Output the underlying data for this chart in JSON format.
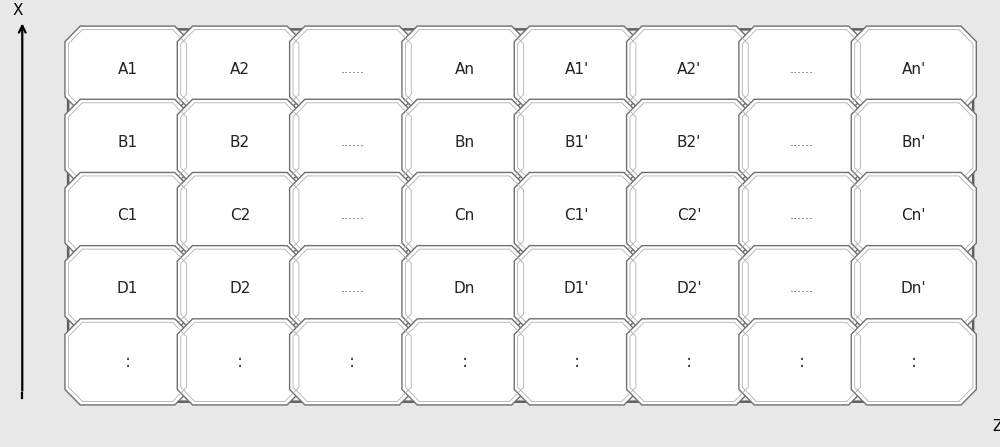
{
  "fig_width": 10.0,
  "fig_height": 4.47,
  "dpi": 100,
  "bg_color": "#e8e8e8",
  "cell_bg": "#ffffff",
  "cell_edge_outer": "#707070",
  "cell_edge_inner": "#a0a0a0",
  "grid_cols": 8,
  "grid_rows": 5,
  "cell_labels": [
    [
      "A1",
      "A2",
      "......",
      "An",
      "A1'",
      "A2'",
      "......",
      "An'"
    ],
    [
      "B1",
      "B2",
      "......",
      "Bn",
      "B1'",
      "B2'",
      "......",
      "Bn'"
    ],
    [
      "C1",
      "C2",
      "......",
      "Cn",
      "C1'",
      "C2'",
      "......",
      "Cn'"
    ],
    [
      "D1",
      "D2",
      "......",
      "Dn",
      "D1'",
      "D2'",
      "......",
      "Dn'"
    ],
    [
      ":",
      ":",
      ":",
      ":",
      ":",
      ":",
      ":",
      ":"
    ]
  ],
  "x_arrow_label": "X",
  "z_arrow_label": "Z",
  "frame_color": "#606060",
  "outer_cell_color": "#707070",
  "inner_cell_color": "#b0b0b0",
  "label_fontsize": 11,
  "dots_fontsize": 9,
  "vdots_fontsize": 13
}
